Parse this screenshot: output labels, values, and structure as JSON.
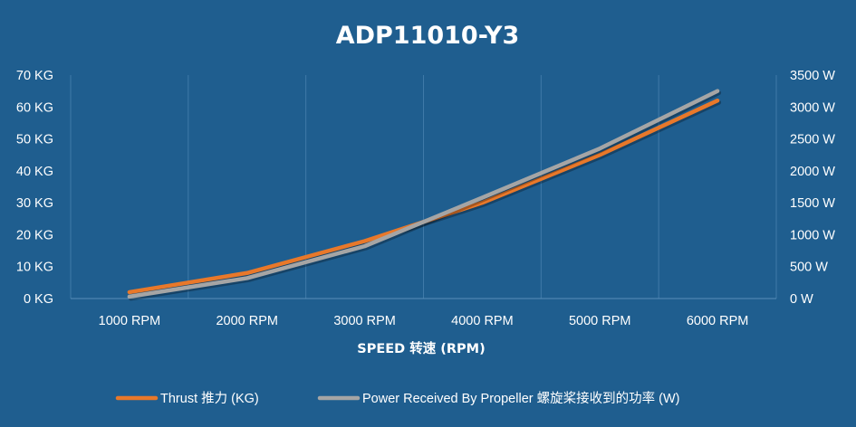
{
  "chart_data": {
    "type": "line",
    "title": "ADP11010-Y3",
    "xlabel": "SPEED 转速 (RPM)",
    "categories": [
      "1000 RPM",
      "2000 RPM",
      "3000 RPM",
      "4000 RPM",
      "5000 RPM",
      "6000 RPM"
    ],
    "y_left": {
      "ticks": [
        "0 KG",
        "10 KG",
        "20 KG",
        "30 KG",
        "40 KG",
        "50 KG",
        "60 KG",
        "70 KG"
      ],
      "ylim": [
        0,
        70
      ]
    },
    "y_right": {
      "ticks": [
        "0 W",
        "500 W",
        "1000 W",
        "1500 W",
        "2000 W",
        "2500 W",
        "3000 W",
        "3500 W"
      ],
      "ylim": [
        0,
        3500
      ]
    },
    "grid": "vertical",
    "legend_position": "bottom",
    "series": [
      {
        "name": "Thrust 推力 (KG)",
        "axis": "left",
        "color": "#e8782a",
        "values": [
          2,
          8,
          18,
          30,
          45,
          62
        ]
      },
      {
        "name": "Power Received By Propeller 螺旋桨接收到的功率 (W)",
        "axis": "right",
        "color": "#a5a5a5",
        "values": [
          30,
          320,
          820,
          1580,
          2350,
          3250
        ]
      }
    ]
  }
}
